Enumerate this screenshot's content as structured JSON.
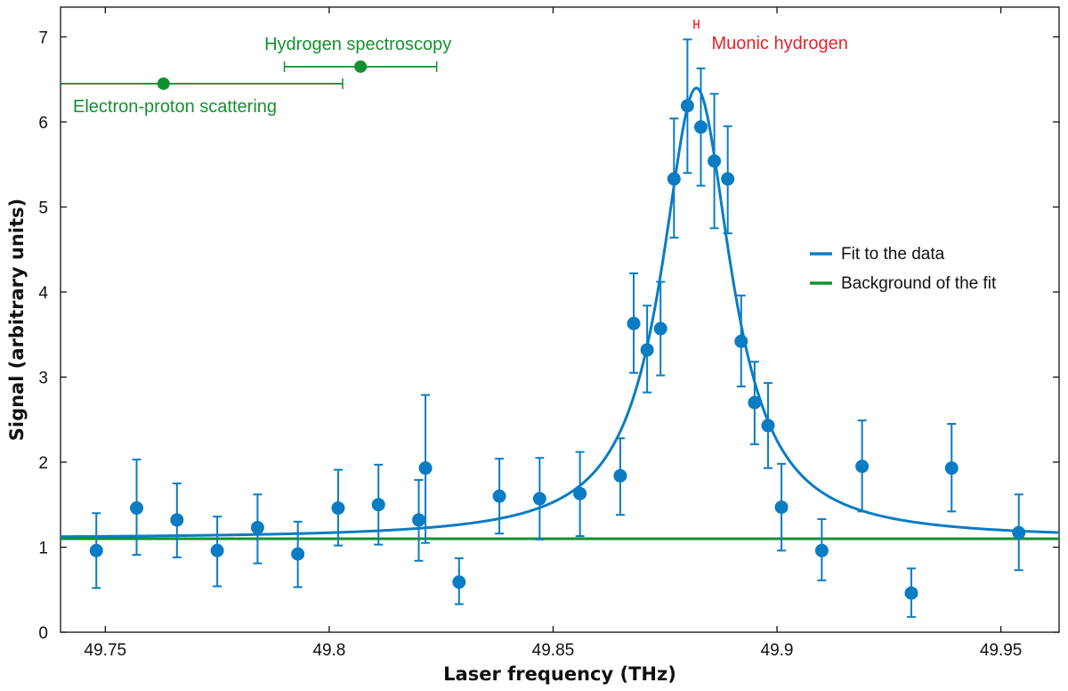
{
  "chart_data": {
    "type": "scatter",
    "xlabel": "Laser frequency (THz)",
    "ylabel": "Signal (arbitrary units)",
    "xlim": [
      49.74,
      49.963
    ],
    "ylim": [
      0,
      7.35
    ],
    "x_ticks": [
      49.75,
      49.8,
      49.85,
      49.9,
      49.95
    ],
    "x_tick_labels": [
      "49.75",
      "49.8",
      "49.85",
      "49.9",
      "49.95"
    ],
    "y_ticks": [
      0,
      1,
      2,
      3,
      4,
      5,
      6,
      7
    ],
    "y_tick_labels": [
      "0",
      "1",
      "2",
      "3",
      "4",
      "5",
      "6",
      "7"
    ],
    "grid": false,
    "legend_position": "right",
    "legend": [
      {
        "label": "Fit to the data",
        "color": "#0a7cc4"
      },
      {
        "label": "Background of the fit",
        "color": "#14912e"
      }
    ],
    "series": [
      {
        "name": "Fit to the data",
        "kind": "lorentzian-fit",
        "color": "#0a7cc4",
        "background": 1.1,
        "amplitude": 5.3,
        "center": 49.882,
        "hwhm": 0.0095
      },
      {
        "name": "Background of the fit",
        "kind": "constant",
        "color": "#14912e",
        "value": 1.1
      },
      {
        "name": "data",
        "kind": "points-with-error-bars",
        "color": "#0a7cc4",
        "points": [
          {
            "x": 49.748,
            "y": 0.96,
            "lo": 0.52,
            "hi": 1.4
          },
          {
            "x": 49.757,
            "y": 1.46,
            "lo": 0.91,
            "hi": 2.03
          },
          {
            "x": 49.766,
            "y": 1.32,
            "lo": 0.88,
            "hi": 1.75
          },
          {
            "x": 49.775,
            "y": 0.96,
            "lo": 0.54,
            "hi": 1.36
          },
          {
            "x": 49.784,
            "y": 1.23,
            "lo": 0.81,
            "hi": 1.62
          },
          {
            "x": 49.793,
            "y": 0.92,
            "lo": 0.53,
            "hi": 1.3
          },
          {
            "x": 49.802,
            "y": 1.46,
            "lo": 1.02,
            "hi": 1.91
          },
          {
            "x": 49.811,
            "y": 1.5,
            "lo": 1.03,
            "hi": 1.97
          },
          {
            "x": 49.82,
            "y": 1.32,
            "lo": 0.84,
            "hi": 1.79
          },
          {
            "x": 49.8215,
            "y": 1.93,
            "lo": 1.05,
            "hi": 2.79
          },
          {
            "x": 49.829,
            "y": 0.59,
            "lo": 0.33,
            "hi": 0.87
          },
          {
            "x": 49.838,
            "y": 1.6,
            "lo": 1.16,
            "hi": 2.04
          },
          {
            "x": 49.847,
            "y": 1.57,
            "lo": 1.09,
            "hi": 2.05
          },
          {
            "x": 49.856,
            "y": 1.63,
            "lo": 1.13,
            "hi": 2.12
          },
          {
            "x": 49.865,
            "y": 1.84,
            "lo": 1.38,
            "hi": 2.28
          },
          {
            "x": 49.868,
            "y": 3.63,
            "lo": 3.05,
            "hi": 4.22
          },
          {
            "x": 49.871,
            "y": 3.32,
            "lo": 2.82,
            "hi": 3.84
          },
          {
            "x": 49.874,
            "y": 3.57,
            "lo": 3.02,
            "hi": 4.12
          },
          {
            "x": 49.877,
            "y": 5.33,
            "lo": 4.64,
            "hi": 6.04
          },
          {
            "x": 49.88,
            "y": 6.19,
            "lo": 5.4,
            "hi": 6.97
          },
          {
            "x": 49.883,
            "y": 5.94,
            "lo": 5.25,
            "hi": 6.63
          },
          {
            "x": 49.886,
            "y": 5.54,
            "lo": 4.75,
            "hi": 6.33
          },
          {
            "x": 49.889,
            "y": 5.33,
            "lo": 4.69,
            "hi": 5.95
          },
          {
            "x": 49.892,
            "y": 3.42,
            "lo": 2.89,
            "hi": 3.96
          },
          {
            "x": 49.895,
            "y": 2.7,
            "lo": 2.21,
            "hi": 3.18
          },
          {
            "x": 49.898,
            "y": 2.43,
            "lo": 1.93,
            "hi": 2.93
          },
          {
            "x": 49.901,
            "y": 1.47,
            "lo": 0.96,
            "hi": 1.98
          },
          {
            "x": 49.91,
            "y": 0.96,
            "lo": 0.61,
            "hi": 1.33
          },
          {
            "x": 49.919,
            "y": 1.95,
            "lo": 1.42,
            "hi": 2.49
          },
          {
            "x": 49.93,
            "y": 0.46,
            "lo": 0.18,
            "hi": 0.75
          },
          {
            "x": 49.939,
            "y": 1.93,
            "lo": 1.42,
            "hi": 2.45
          },
          {
            "x": 49.954,
            "y": 1.17,
            "lo": 0.73,
            "hi": 1.62
          }
        ]
      }
    ],
    "annotations": [
      {
        "label": "Hydrogen spectroscopy",
        "color": "#14912e",
        "x": 49.807,
        "xmin": 49.79,
        "xmax": 49.824,
        "y": 6.65,
        "label_placement": "above"
      },
      {
        "label": "Electron-proton scattering",
        "color": "#14912e",
        "x": 49.763,
        "xmin": 49.74,
        "xmax": 49.803,
        "y": 6.45,
        "label_placement": "below",
        "extends_past_left_axis": true
      },
      {
        "label": "Muonic hydrogen",
        "color": "#e3242b",
        "x": 49.882,
        "xmin": 49.8815,
        "xmax": 49.8825,
        "y": 7.15,
        "label_placement": "right"
      }
    ]
  }
}
